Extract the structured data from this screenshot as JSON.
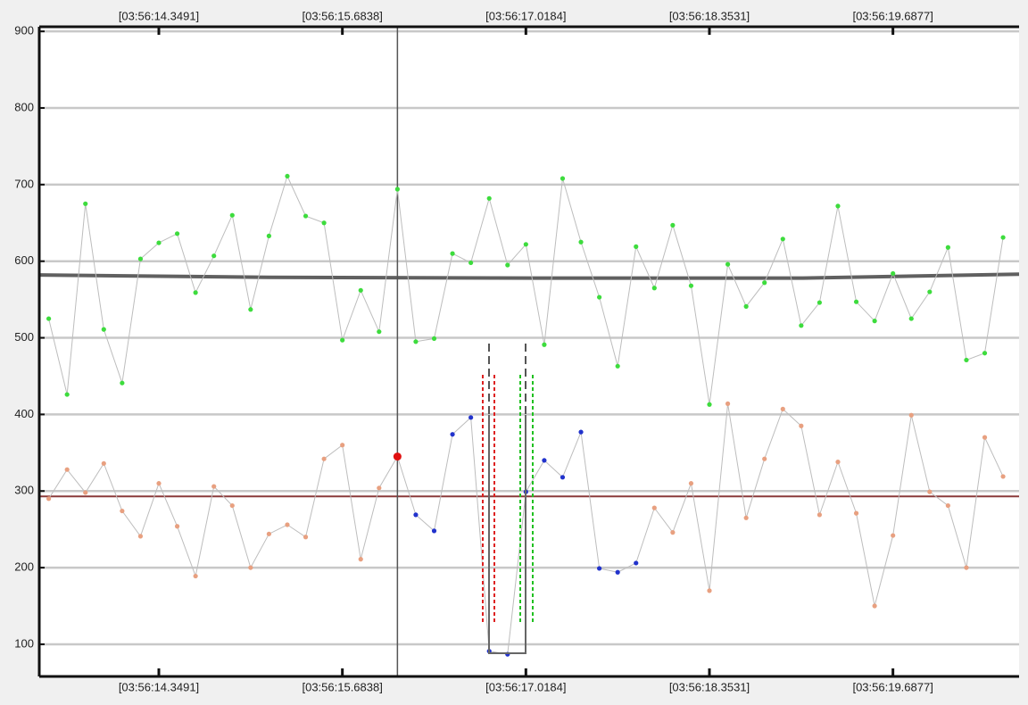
{
  "chart_data": {
    "type": "line",
    "x": [
      13.5483,
      13.6818,
      13.8152,
      13.9487,
      14.0822,
      14.2157,
      14.3491,
      14.4826,
      14.6161,
      14.7495,
      14.883,
      15.0165,
      15.1499,
      15.2834,
      15.4169,
      15.5504,
      15.6838,
      15.8173,
      15.9508,
      16.0842,
      16.2177,
      16.3512,
      16.4846,
      16.6181,
      16.7516,
      16.8851,
      17.0185,
      17.152,
      17.2855,
      17.4189,
      17.5524,
      17.6859,
      17.8193,
      17.9528,
      18.0863,
      18.2198,
      18.3532,
      18.4867,
      18.6202,
      18.7536,
      18.8871,
      19.0206,
      19.154,
      19.2875,
      19.421,
      19.5545,
      19.6879,
      19.8214,
      19.9549,
      20.0883,
      20.2218,
      20.3553,
      20.4887
    ],
    "series": [
      {
        "color": "#3ddc3d",
        "line_color": "#bdbdbd",
        "values": [
          525,
          426,
          675,
          511,
          441,
          603,
          624,
          636,
          559,
          607,
          660,
          537,
          633,
          711,
          659,
          650,
          497,
          562,
          508,
          694,
          495,
          499,
          610,
          598,
          682,
          595,
          622,
          491,
          708,
          625,
          553,
          463,
          619,
          565,
          647,
          568,
          413,
          596,
          541,
          572,
          629,
          516,
          546,
          672,
          547,
          522,
          584,
          525,
          560,
          618,
          471,
          480,
          631
        ]
      },
      {
        "color": "#e8a080",
        "line_color": "#bdbdbd",
        "values": [
          290,
          328,
          298,
          336,
          274,
          241,
          310,
          254,
          189,
          306,
          281,
          200,
          244,
          256,
          240,
          342,
          360,
          211,
          304,
          345,
          269,
          248,
          374,
          396,
          91,
          87,
          299,
          340,
          318,
          377,
          199,
          194,
          206,
          278,
          246,
          310,
          170,
          414,
          265,
          342,
          407,
          385,
          269,
          338,
          271,
          150,
          242,
          399,
          299,
          281,
          200,
          370,
          319
        ],
        "marker_colors": [
          "#e8a080",
          "#e8a080",
          "#e8a080",
          "#e8a080",
          "#e8a080",
          "#e8a080",
          "#e8a080",
          "#e8a080",
          "#e8a080",
          "#e8a080",
          "#e8a080",
          "#e8a080",
          "#e8a080",
          "#e8a080",
          "#e8a080",
          "#e8a080",
          "#e8a080",
          "#e8a080",
          "#e8a080",
          "#e01010",
          "#2233cc",
          "#2233cc",
          "#2233cc",
          "#2233cc",
          "#2233cc",
          "#2233cc",
          "#2233cc",
          "#2233cc",
          "#2233cc",
          "#2233cc",
          "#2233cc",
          "#2233cc",
          "#2233cc",
          "#e8a080",
          "#e8a080",
          "#e8a080",
          "#e8a080",
          "#e8a080",
          "#e8a080",
          "#e8a080",
          "#e8a080",
          "#e8a080",
          "#e8a080",
          "#e8a080",
          "#e8a080",
          "#e8a080",
          "#e8a080",
          "#e8a080",
          "#e8a080",
          "#e8a080",
          "#e8a080",
          "#e8a080",
          "#e8a080"
        ]
      }
    ],
    "trend": {
      "x": [
        13.4795,
        15.141,
        17.087,
        19.034,
        20.605
      ],
      "values": [
        582,
        579,
        578,
        578,
        583
      ],
      "color": "#606060"
    },
    "hline": {
      "value": 293,
      "color": "#8b3a3a"
    },
    "cursor_x": 16.0842,
    "xlim": [
      13.4795,
      20.605
    ],
    "ylim": [
      58,
      906
    ],
    "xticks": [
      {
        "value": 14.3491,
        "label": "[03:56:14.3491]"
      },
      {
        "value": 15.6838,
        "label": "[03:56:15.6838]"
      },
      {
        "value": 17.0184,
        "label": "[03:56:17.0184]"
      },
      {
        "value": 18.3531,
        "label": "[03:56:18.3531]"
      },
      {
        "value": 19.6877,
        "label": "[03:56:19.6877]"
      }
    ],
    "yticks": [
      100,
      200,
      300,
      400,
      500,
      600,
      700,
      800,
      900
    ],
    "grid": true
  }
}
